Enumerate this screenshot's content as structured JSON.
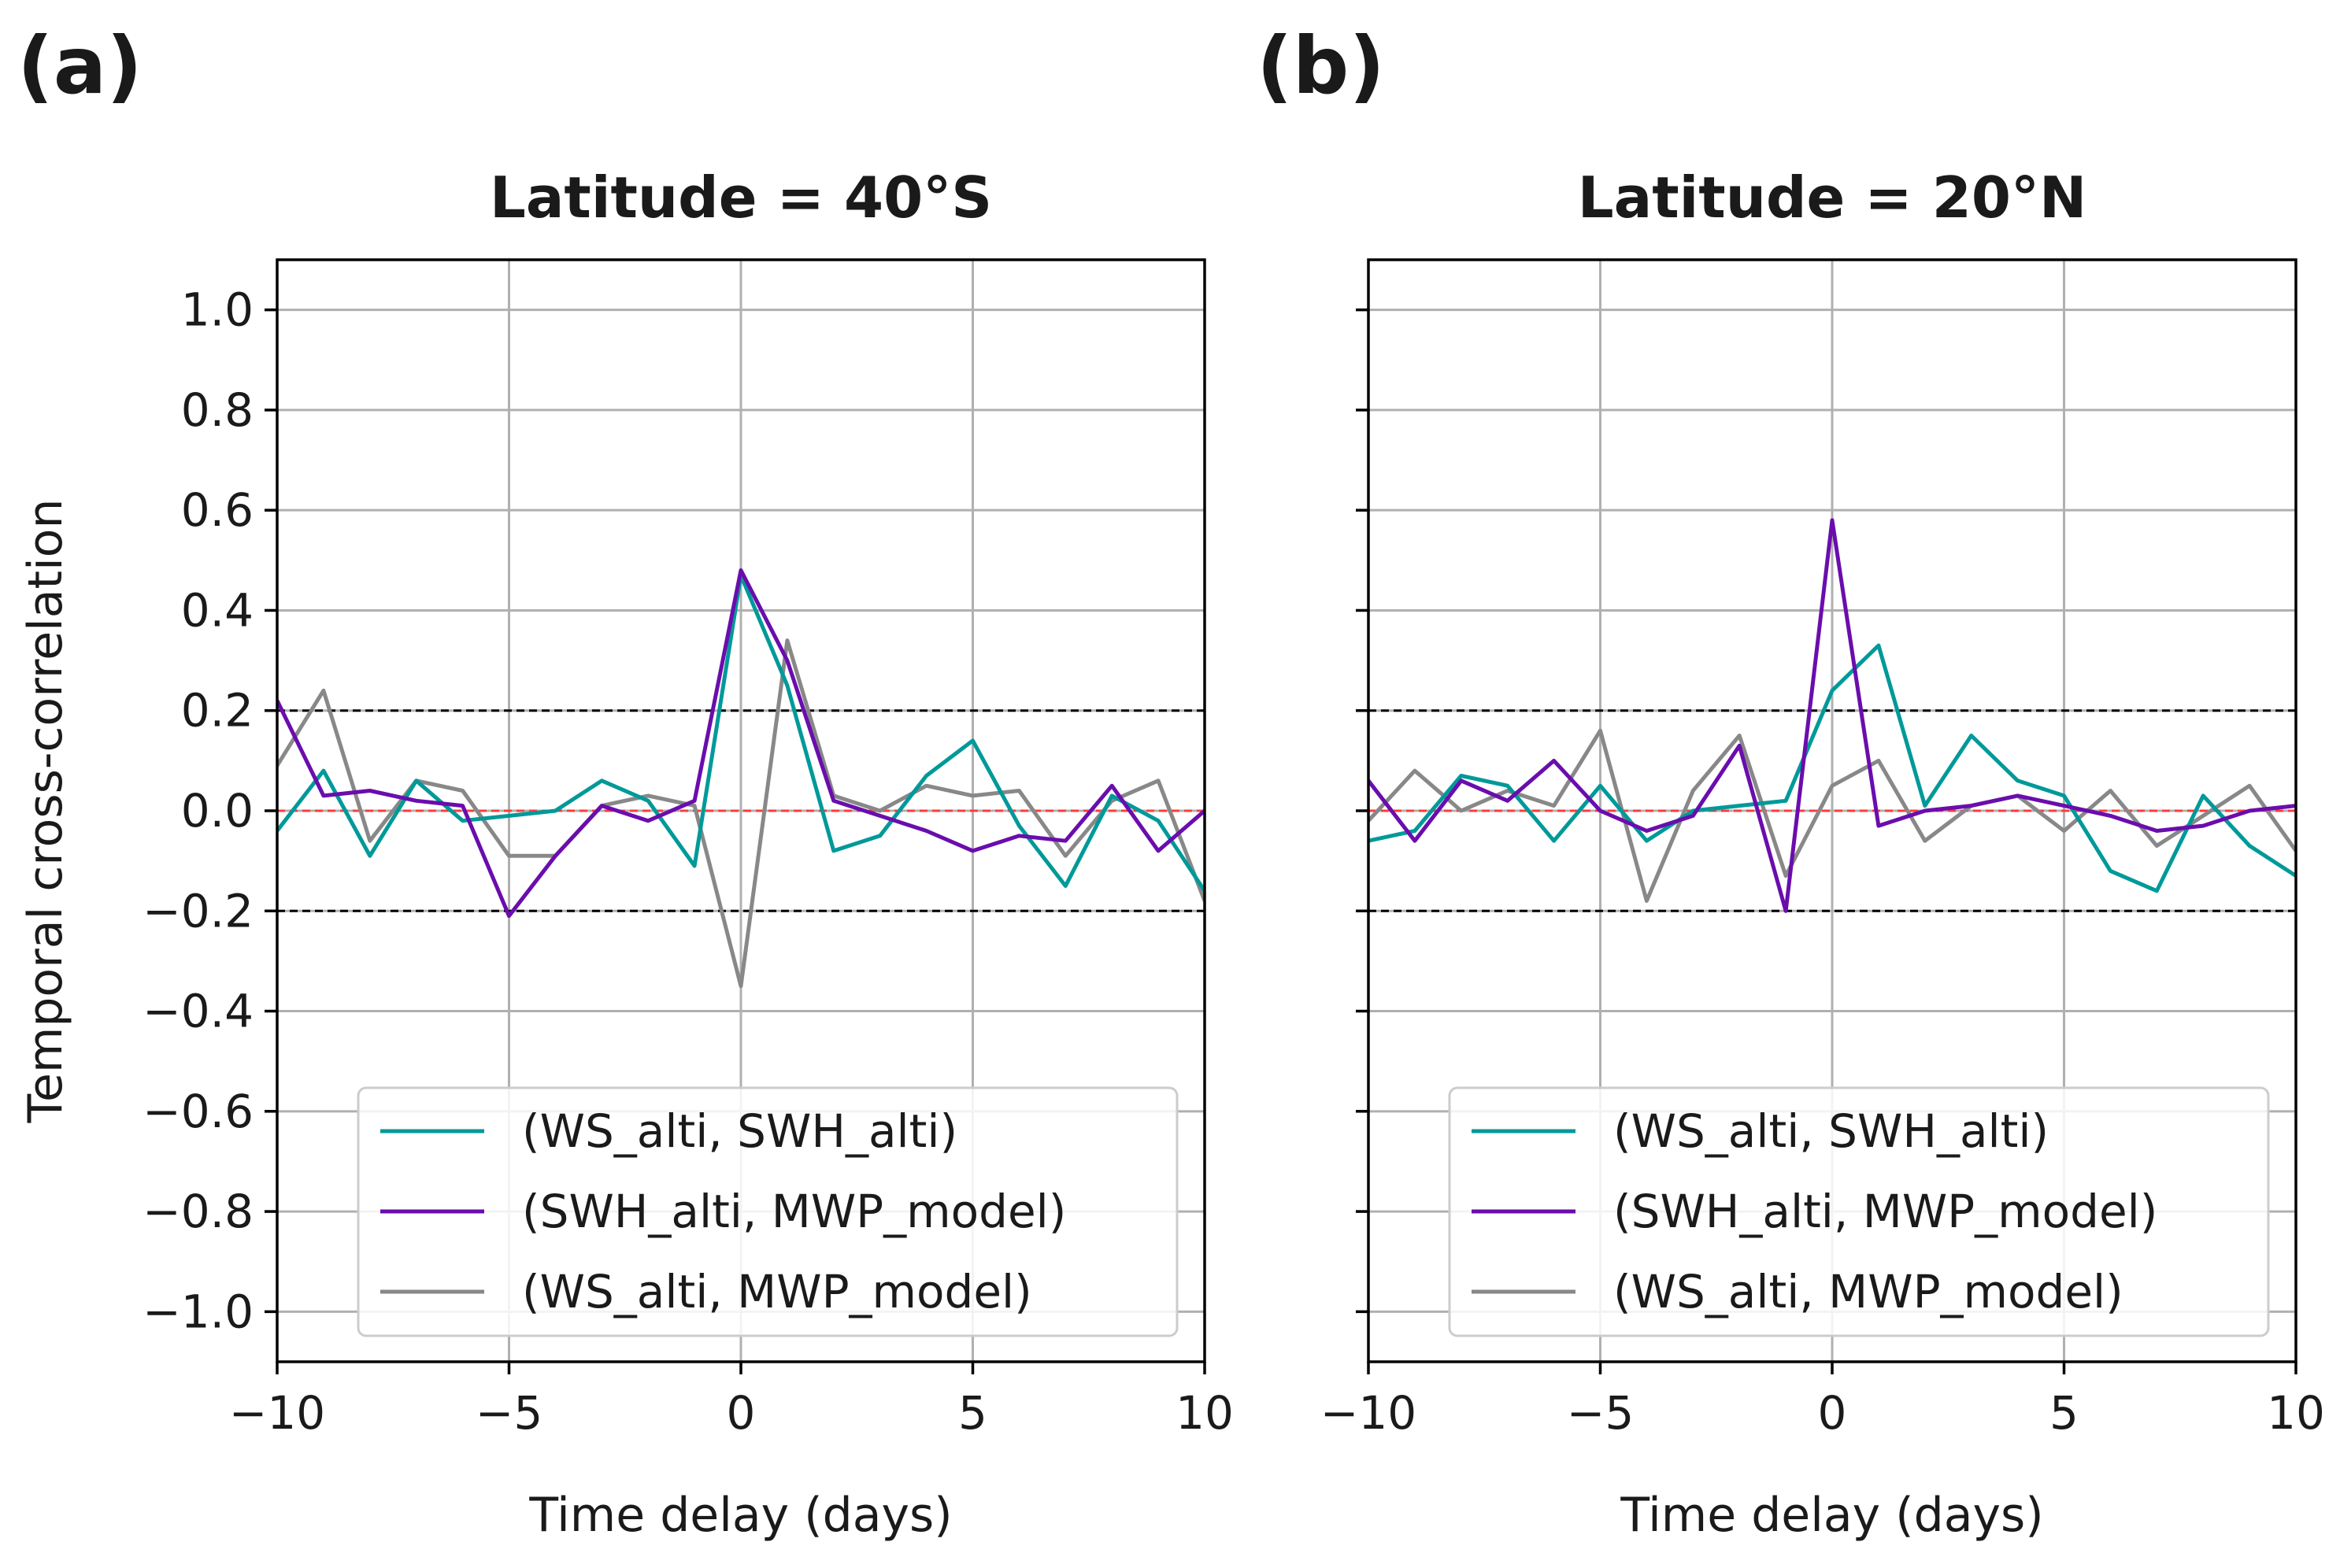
{
  "chart_data": [
    {
      "type": "line",
      "panel_label": "(a)",
      "title": "Latitude = 40°S",
      "xlabel": "Time delay (days)",
      "ylabel": "Temporal cross-correlation",
      "xlim": [
        -10,
        10
      ],
      "ylim": [
        -1.1,
        1.1
      ],
      "xticks": [
        -10,
        -5,
        0,
        5,
        10
      ],
      "xtick_labels": [
        "−10",
        "−5",
        "0",
        "5",
        "10"
      ],
      "yticks": [
        1.0,
        0.8,
        0.6,
        0.4,
        0.2,
        0.0,
        -0.2,
        -0.4,
        -0.6,
        -0.8,
        -1.0
      ],
      "ytick_labels": [
        "1.0",
        "0.8",
        "0.6",
        "0.4",
        "0.2",
        "0.0",
        "−0.2",
        "−0.4",
        "−0.6",
        "−0.8",
        "−1.0"
      ],
      "grid": true,
      "show_ylabel": true,
      "show_ytick_labels": true,
      "legend_position": "lower center",
      "reference_lines": [
        {
          "y": 0.2,
          "color": "#000000",
          "style": "dashed"
        },
        {
          "y": -0.2,
          "color": "#000000",
          "style": "dashed"
        },
        {
          "y": 0.0,
          "color": "#ff3b3b",
          "style": "dashed"
        }
      ],
      "x": [
        -10,
        -9,
        -8,
        -7,
        -6,
        -5,
        -4,
        -3,
        -2,
        -1,
        0,
        1,
        2,
        3,
        4,
        5,
        6,
        7,
        8,
        9,
        10
      ],
      "series": [
        {
          "name": "(WS_alti, SWH_alti)",
          "color": "#009999",
          "values": [
            -0.04,
            0.08,
            -0.09,
            0.06,
            -0.02,
            -0.01,
            0.0,
            0.06,
            0.02,
            -0.11,
            0.47,
            0.25,
            -0.08,
            -0.05,
            0.07,
            0.14,
            -0.03,
            -0.15,
            0.03,
            -0.02,
            -0.16
          ]
        },
        {
          "name": "(SWH_alti, MWP_model)",
          "color": "#6a0dad",
          "values": [
            0.22,
            0.03,
            0.04,
            0.02,
            0.01,
            -0.21,
            -0.09,
            0.01,
            -0.02,
            0.02,
            0.48,
            0.3,
            0.02,
            -0.01,
            -0.04,
            -0.08,
            -0.05,
            -0.06,
            0.05,
            -0.08,
            0.0
          ]
        },
        {
          "name": "(WS_alti, MWP_model)",
          "color": "#888888",
          "values": [
            0.09,
            0.24,
            -0.06,
            0.06,
            0.04,
            -0.09,
            -0.09,
            0.01,
            0.03,
            0.01,
            -0.35,
            0.34,
            0.03,
            0.0,
            0.05,
            0.03,
            0.04,
            -0.09,
            0.02,
            0.06,
            -0.18
          ]
        }
      ]
    },
    {
      "type": "line",
      "panel_label": "(b)",
      "title": "Latitude = 20°N",
      "xlabel": "Time delay (days)",
      "ylabel": "",
      "xlim": [
        -10,
        10
      ],
      "ylim": [
        -1.1,
        1.1
      ],
      "xticks": [
        -10,
        -5,
        0,
        5,
        10
      ],
      "xtick_labels": [
        "−10",
        "−5",
        "0",
        "5",
        "10"
      ],
      "yticks": [
        1.0,
        0.8,
        0.6,
        0.4,
        0.2,
        0.0,
        -0.2,
        -0.4,
        -0.6,
        -0.8,
        -1.0
      ],
      "ytick_labels": [],
      "grid": true,
      "show_ylabel": false,
      "show_ytick_labels": false,
      "legend_position": "lower center",
      "reference_lines": [
        {
          "y": 0.2,
          "color": "#000000",
          "style": "dashed"
        },
        {
          "y": -0.2,
          "color": "#000000",
          "style": "dashed"
        },
        {
          "y": 0.0,
          "color": "#ff3b3b",
          "style": "dashed"
        }
      ],
      "x": [
        -10,
        -9,
        -8,
        -7,
        -6,
        -5,
        -4,
        -3,
        -2,
        -1,
        0,
        1,
        2,
        3,
        4,
        5,
        6,
        7,
        8,
        9,
        10
      ],
      "series": [
        {
          "name": "(WS_alti, SWH_alti)",
          "color": "#009999",
          "values": [
            -0.06,
            -0.04,
            0.07,
            0.05,
            -0.06,
            0.05,
            -0.06,
            0.0,
            0.01,
            0.02,
            0.24,
            0.33,
            0.01,
            0.15,
            0.06,
            0.03,
            -0.12,
            -0.16,
            0.03,
            -0.07,
            -0.13
          ]
        },
        {
          "name": "(SWH_alti, MWP_model)",
          "color": "#6a0dad",
          "values": [
            0.06,
            -0.06,
            0.06,
            0.02,
            0.1,
            0.0,
            -0.04,
            -0.01,
            0.13,
            -0.2,
            0.58,
            -0.03,
            0.0,
            0.01,
            0.03,
            0.01,
            -0.01,
            -0.04,
            -0.03,
            0.0,
            0.01
          ]
        },
        {
          "name": "(WS_alti, MWP_model)",
          "color": "#888888",
          "values": [
            -0.02,
            0.08,
            0.0,
            0.04,
            0.01,
            0.16,
            -0.18,
            0.04,
            0.15,
            -0.13,
            0.05,
            0.1,
            -0.06,
            0.01,
            0.03,
            -0.04,
            0.04,
            -0.07,
            -0.01,
            0.05,
            -0.08
          ]
        }
      ]
    }
  ]
}
